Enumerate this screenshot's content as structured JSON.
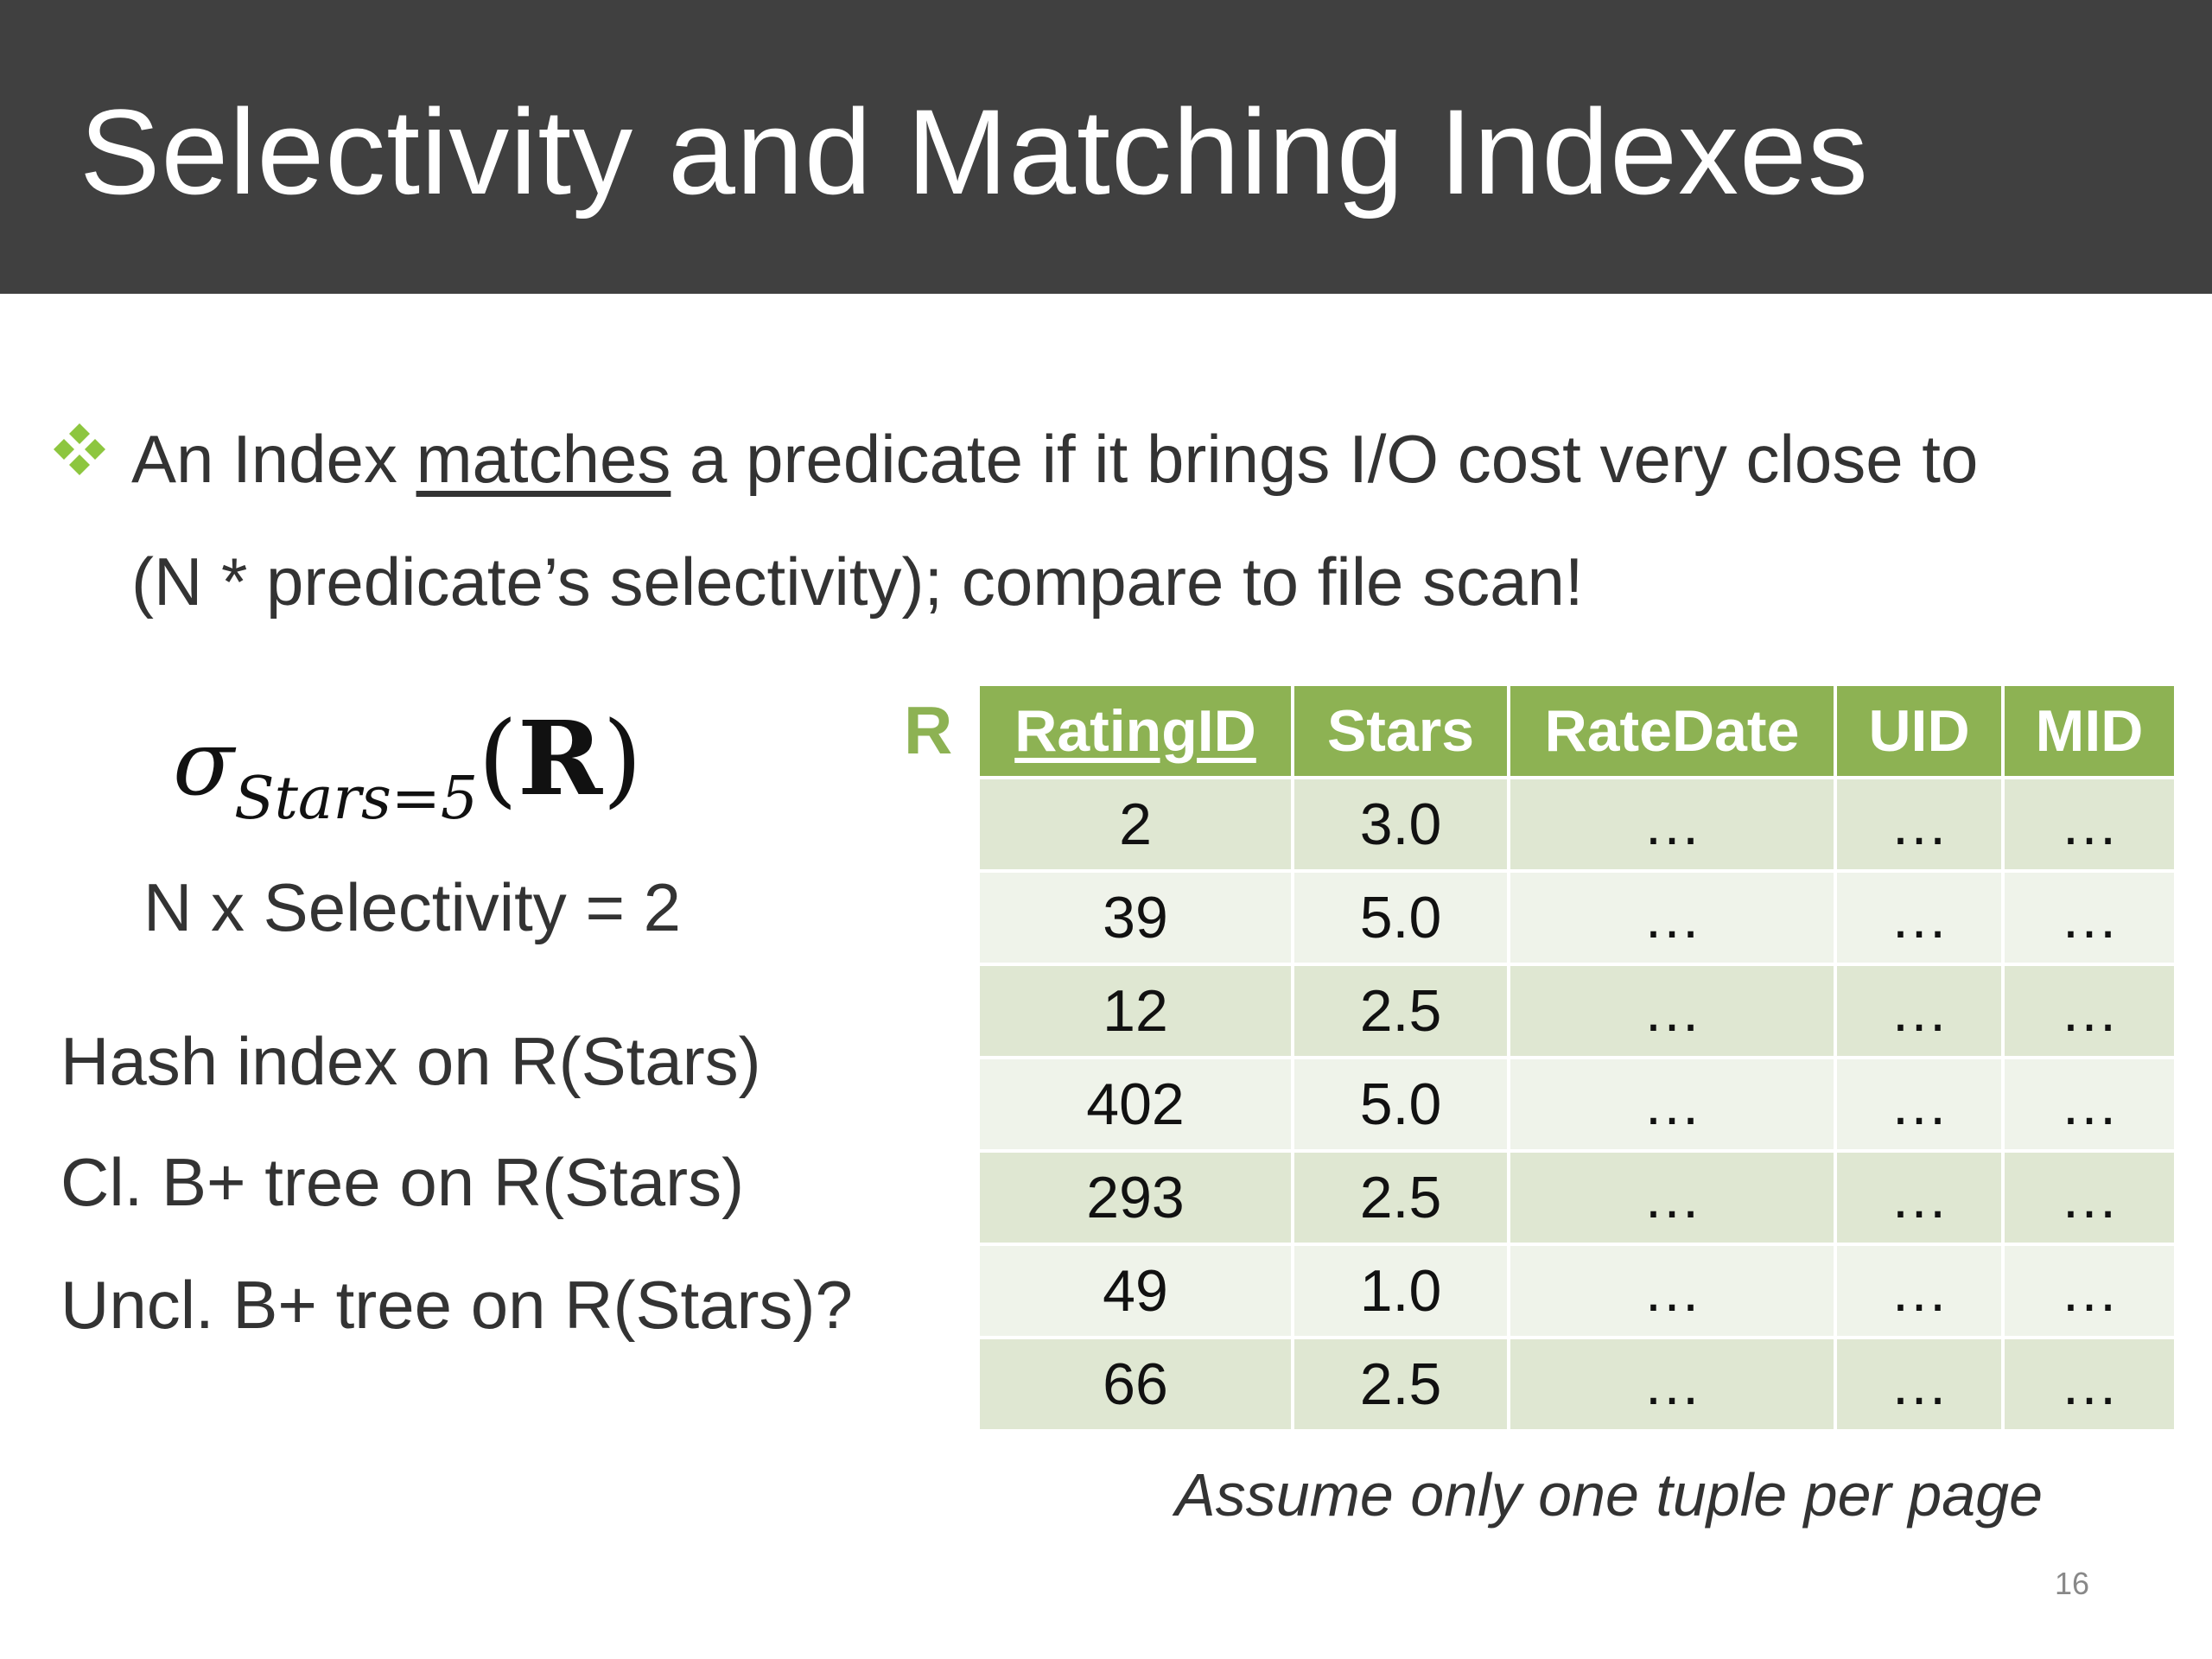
{
  "slide": {
    "title": "Selectivity and Matching Indexes",
    "bullet": {
      "before": "An Index ",
      "underlined": "matches",
      "after_line1": " a predicate if it brings I/O cost very close to",
      "line2": "(N * predicate’s selectivity); compare to file scan!"
    },
    "formula": {
      "operator": "σ",
      "subscript": "Stars=5",
      "argument_open": "(",
      "argument": "R",
      "argument_close": ")"
    },
    "selectivity_text": "N x Selectivity = 2",
    "index_options": [
      "Hash index on R(Stars)",
      "Cl. B+ tree on R(Stars)",
      "Uncl. B+ tree on R(Stars)?"
    ],
    "relation_label": "R",
    "table": {
      "headers": [
        "RatingID",
        "Stars",
        "RateDate",
        "UID",
        "MID"
      ],
      "rows": [
        [
          "2",
          "3.0",
          "…",
          "…",
          "…"
        ],
        [
          "39",
          "5.0",
          "…",
          "…",
          "…"
        ],
        [
          "12",
          "2.5",
          "…",
          "…",
          "…"
        ],
        [
          "402",
          "5.0",
          "…",
          "…",
          "…"
        ],
        [
          "293",
          "2.5",
          "…",
          "…",
          "…"
        ],
        [
          "49",
          "1.0",
          "…",
          "…",
          "…"
        ],
        [
          "66",
          "2.5",
          "…",
          "…",
          "…"
        ]
      ]
    },
    "caption": "Assume only one tuple per page",
    "page_number": "16",
    "colors": {
      "header_bg": "#404040",
      "accent_green": "#8db253",
      "row_dark": "#dfe7d2",
      "row_light": "#eff3ea",
      "bullet_icon": "#8dc63f"
    },
    "icons": {
      "bullet": "four-diamond-bullet-icon"
    }
  }
}
